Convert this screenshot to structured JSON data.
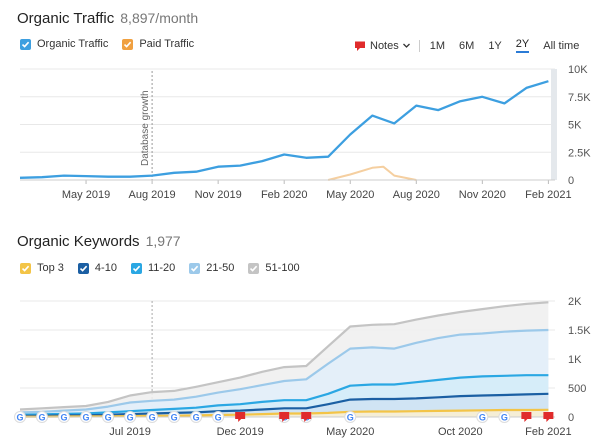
{
  "traffic": {
    "title": "Organic Traffic",
    "value": "8,897/month",
    "legend": [
      {
        "label": "Organic Traffic",
        "color": "#3d9fe0"
      },
      {
        "label": "Paid Traffic",
        "color": "#f0a040"
      }
    ],
    "notes_label": "Notes",
    "periods": [
      "1M",
      "6M",
      "1Y",
      "2Y",
      "All time"
    ],
    "active_period": "2Y"
  },
  "keywords": {
    "title": "Organic Keywords",
    "value": "1,977",
    "legend": [
      {
        "label": "Top 3",
        "color": "#f3c447"
      },
      {
        "label": "4-10",
        "color": "#1b5fa3"
      },
      {
        "label": "11-20",
        "color": "#2aa7e3"
      },
      {
        "label": "21-50",
        "color": "#9cc9ea"
      },
      {
        "label": "51-100",
        "color": "#c4c4c4"
      }
    ]
  },
  "chart_data": [
    {
      "type": "line",
      "title": "Organic Traffic",
      "x_ticks": [
        "May 2019",
        "Aug 2019",
        "Nov 2019",
        "Feb 2020",
        "May 2020",
        "Aug 2020",
        "Nov 2020",
        "Feb 2021"
      ],
      "y_ticks": [
        "0",
        "2.5K",
        "5K",
        "7.5K",
        "10K"
      ],
      "ylim": [
        0,
        10000
      ],
      "annotation": "Database growth",
      "series": [
        {
          "name": "Organic Traffic",
          "color": "#3d9fe0",
          "x": [
            "2019-02",
            "2019-03",
            "2019-04",
            "2019-05",
            "2019-06",
            "2019-07",
            "2019-08",
            "2019-09",
            "2019-10",
            "2019-11",
            "2019-12",
            "2020-01",
            "2020-02",
            "2020-03",
            "2020-04",
            "2020-05",
            "2020-06",
            "2020-07",
            "2020-08",
            "2020-09",
            "2020-10",
            "2020-11",
            "2020-12",
            "2021-01",
            "2021-02"
          ],
          "values": [
            200,
            250,
            400,
            350,
            300,
            300,
            400,
            650,
            750,
            1200,
            1300,
            1700,
            2300,
            2000,
            2100,
            4100,
            5800,
            5100,
            6700,
            6300,
            7100,
            7500,
            6900,
            8300,
            8900
          ]
        },
        {
          "name": "Paid Traffic",
          "color": "#f0a040",
          "x": [
            "2020-04",
            "2020-05",
            "2020-06",
            "2020-06.5",
            "2020-07",
            "2020-08"
          ],
          "values": [
            0,
            500,
            1100,
            1200,
            400,
            0
          ]
        }
      ]
    },
    {
      "type": "area",
      "title": "Organic Keywords",
      "x_ticks": [
        "Jul 2019",
        "Dec 2019",
        "May 2020",
        "Oct 2020",
        "Feb 2021"
      ],
      "y_ticks": [
        "0",
        "500",
        "1K",
        "1.5K",
        "2K"
      ],
      "ylim": [
        0,
        2000
      ],
      "x": [
        "2019-02",
        "2019-03",
        "2019-04",
        "2019-05",
        "2019-06",
        "2019-07",
        "2019-08",
        "2019-09",
        "2019-10",
        "2019-11",
        "2019-12",
        "2020-01",
        "2020-02",
        "2020-03",
        "2020-04",
        "2020-05",
        "2020-06",
        "2020-07",
        "2020-08",
        "2020-09",
        "2020-10",
        "2020-11",
        "2020-12",
        "2021-01",
        "2021-02"
      ],
      "series": [
        {
          "name": "51-100",
          "color": "#c4c4c4",
          "values": [
            130,
            150,
            170,
            190,
            260,
            370,
            430,
            450,
            520,
            600,
            680,
            780,
            860,
            880,
            1220,
            1560,
            1590,
            1600,
            1680,
            1750,
            1810,
            1860,
            1910,
            1950,
            1977
          ]
        },
        {
          "name": "21-50",
          "color": "#9cc9ea",
          "values": [
            80,
            90,
            110,
            130,
            180,
            250,
            280,
            300,
            350,
            420,
            480,
            550,
            620,
            650,
            920,
            1180,
            1200,
            1180,
            1280,
            1360,
            1420,
            1440,
            1470,
            1490,
            1500
          ]
        },
        {
          "name": "11-20",
          "color": "#2aa7e3",
          "values": [
            40,
            45,
            55,
            60,
            80,
            100,
            120,
            140,
            160,
            200,
            220,
            260,
            290,
            290,
            400,
            540,
            560,
            560,
            600,
            640,
            680,
            700,
            710,
            720,
            720
          ]
        },
        {
          "name": "4-10",
          "color": "#1b5fa3",
          "values": [
            20,
            22,
            28,
            30,
            40,
            50,
            60,
            70,
            80,
            100,
            110,
            130,
            150,
            150,
            220,
            300,
            310,
            310,
            320,
            340,
            360,
            370,
            380,
            390,
            400
          ]
        },
        {
          "name": "Top 3",
          "color": "#f3c447",
          "values": [
            5,
            5,
            8,
            10,
            12,
            15,
            20,
            22,
            28,
            35,
            40,
            50,
            60,
            60,
            70,
            90,
            95,
            95,
            100,
            105,
            110,
            115,
            120,
            120,
            125
          ]
        }
      ],
      "markers": [
        {
          "type": "google",
          "x": [
            "2019-02",
            "2019-03",
            "2019-04",
            "2019-05",
            "2019-06",
            "2019-07",
            "2019-08",
            "2019-09",
            "2019-10",
            "2019-11",
            "2020-02",
            "2020-03",
            "2020-05",
            "2020-11",
            "2020-12"
          ]
        },
        {
          "type": "note",
          "x": [
            "2019-12",
            "2020-02",
            "2020-03",
            "2021-01",
            "2021-02"
          ]
        }
      ]
    }
  ]
}
